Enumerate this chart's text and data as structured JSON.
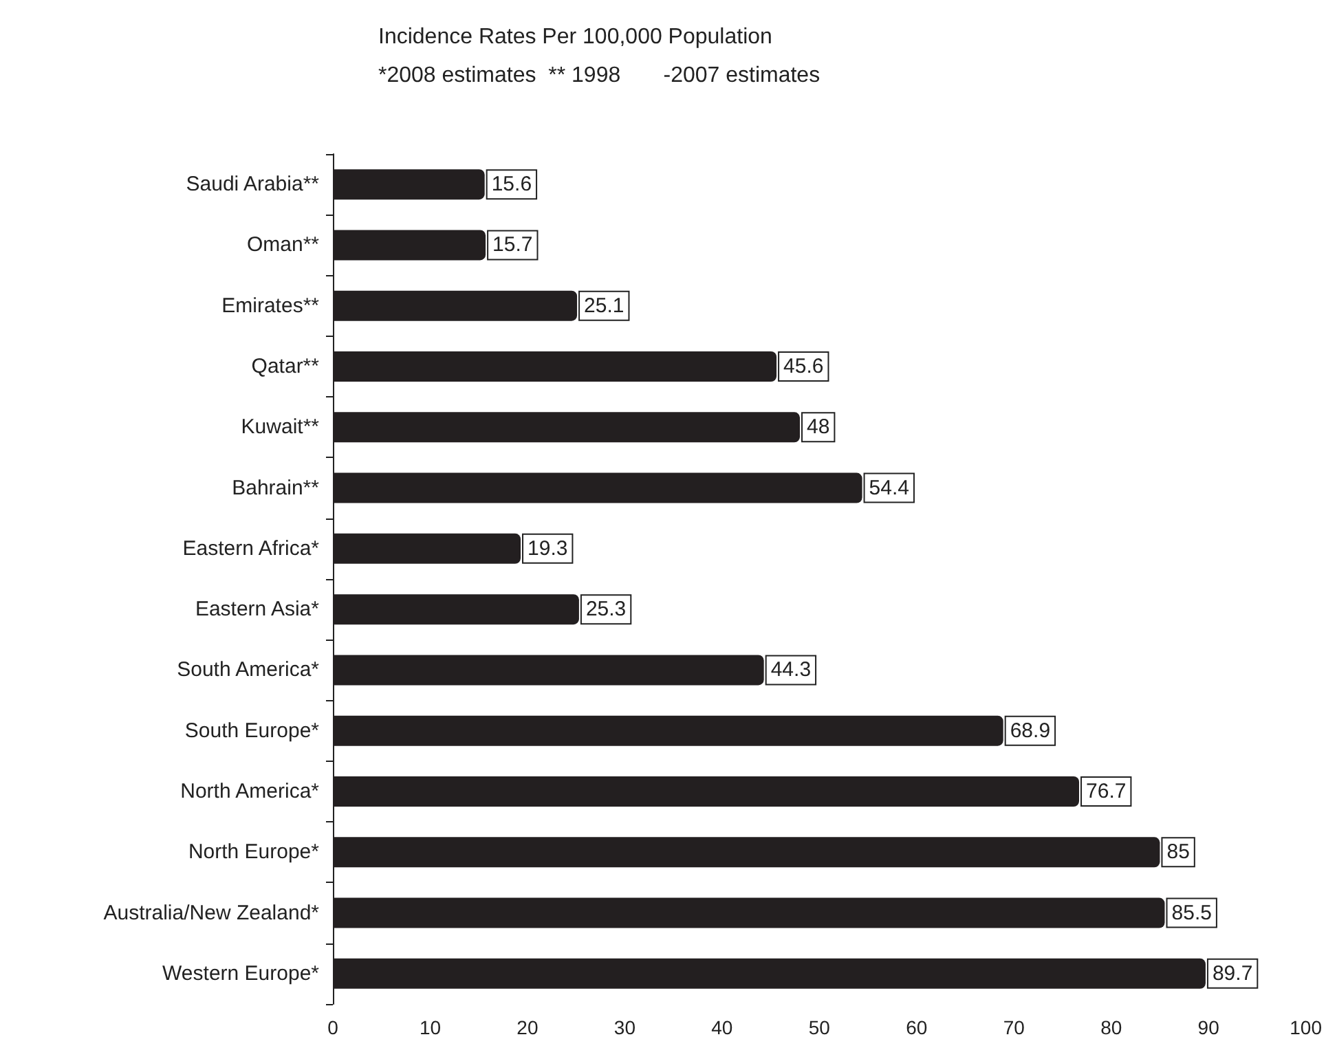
{
  "chart_data": {
    "type": "bar",
    "orientation": "horizontal",
    "title": "Incidence Rates Per 100,000 Population",
    "subtitle": "*2008 estimates  ** 1998       -2007 estimates",
    "categories": [
      "Saudi Arabia**",
      "Oman**",
      "Emirates**",
      "Qatar**",
      "Kuwait**",
      "Bahrain**",
      "Eastern Africa*",
      "Eastern Asia*",
      "South America*",
      "South Europe*",
      "North America*",
      "North Europe*",
      "Australia/New Zealand*",
      "Western Europe*"
    ],
    "values": [
      15.6,
      15.7,
      25.1,
      45.6,
      48,
      54.4,
      19.3,
      25.3,
      44.3,
      68.9,
      76.7,
      85,
      85.5,
      89.7
    ],
    "color": "#231f20",
    "data_labels": true,
    "xlim": [
      0,
      100
    ],
    "xticks": [
      0,
      10,
      20,
      30,
      40,
      50,
      60,
      70,
      80,
      90,
      100
    ]
  }
}
